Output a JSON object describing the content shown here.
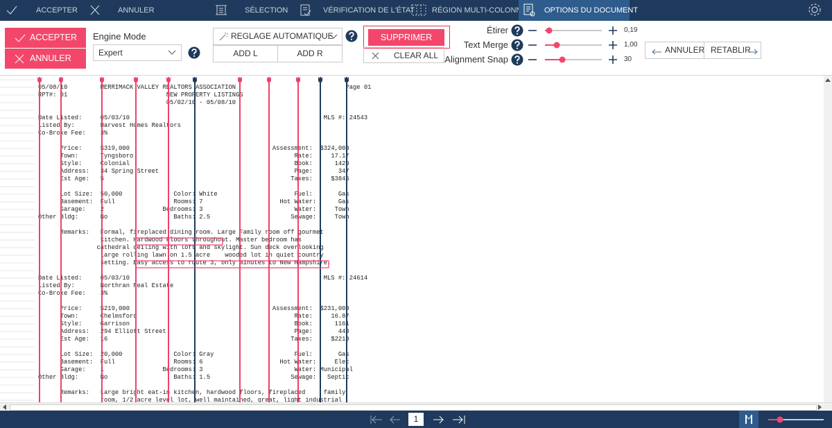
{
  "top_bar": {
    "tabs": [
      "ACCEPTER",
      "ANNULER",
      "SÉLECTION",
      "VÉRIFICATION DE L'ÉTAT",
      "RÉGION MULTI-COLONNES",
      "OPTIONS DU DOCUMENT"
    ]
  },
  "toolbar": {
    "accept": "ACCEPTER",
    "cancel": "ANNULER",
    "engine_label": "Engine Mode",
    "engine_value": "Expert",
    "auto": "REGLAGE AUTOMATIQUE",
    "add_l": "ADD L",
    "add_r": "ADD R",
    "delete": "SUPPRIMER",
    "clear": "CLEAR ALL",
    "sliders": [
      {
        "label": "Étirer",
        "value": "0,19"
      },
      {
        "label": "Text Merge",
        "value": "1,00"
      },
      {
        "label": "Alignment Snap",
        "value": "30"
      }
    ],
    "undo": "ANNULER",
    "redo": "RETABLIR"
  },
  "document": {
    "blocks": [
      [
        "05/08/10         MERRIMACK VALLEY REALTORS ASSOCIATION                              Page 01",
        "RPT#: 01                           NEW PROPERTY LISTINGS",
        "                                   05/02/10 - 05/08/10"
      ],
      [
        "Date Listed:     05/03/10                                                     MLS #: 24543",
        "Listed By:       Harvest Homes Realtors",
        "Co-Broke Fee:    3%"
      ],
      [
        "      Price:     $319,000                                       Assessment:  $324,000",
        "      Town:      Tyngsboro                                            Rate:     17.17",
        "      Style:     Colonial                                             Book:      1420",
        "      Address:   34 Spring Street                                     Page:       347",
        "      Est Age:   5                                                   Taxes:     $3846"
      ],
      [
        "      Lot Size:  50,000              Color: White                     Fuel:       Gas",
        "      Basement:  Full                Rooms: 7                     Hot Water:      Gas",
        "      Garage:    2                Bedrooms: 3                         Water:     Town",
        "Other Bldg:      No                  Baths: 2.5                      Sewage:     Town"
      ],
      [
        "      Remarks:   Formal, fireplaced dining room. Large Family room off gourmet",
        "                 kitchen. Hardwood Floors throughout. Master bedroom has",
        "                cathedral ceiling with loft and skylight. Sun deck overlooking",
        "                 large rolling lawn on 1.5 acre    wooded lot in quiet country",
        "                 setting. Easy access to route 3, only minutes to New Hampshire."
      ],
      [
        "Date Listed:     05/03/10                                                     MLS #: 24614",
        "Listed By:       Northran Real Estate",
        "Co-Broke Fee:    3%"
      ],
      [
        "      Price:     $219,000                                       Assessment:  $231,000",
        "      Town:      Chelmsford                                           Rate:     16.87",
        "      Style:     Garrison                                             Book:      1161",
        "      Address:   294 Elliott Street                                   Page:       443",
        "      Est Age:   16                                                  Taxes:     $2210"
      ],
      [
        "      Lot Size:  20,000              Color: Gray                      Fuel:       Gas",
        "      Basement:  Full                Rooms: 6                     Hot Water:     Elec",
        "      Garage:    1                Bedrooms: 3                         Water: Municipal",
        "Other Bldg:      No                  Baths: 1.5                      Sewage:   Septic"
      ],
      [
        "      Remarks:   Large bright eat-in kitchen, hardwood floors, fireplaced     family",
        "                 room, 1/2 acre level lot, well maintained, great, light industrial"
      ]
    ]
  },
  "pagination": {
    "page": "1"
  }
}
